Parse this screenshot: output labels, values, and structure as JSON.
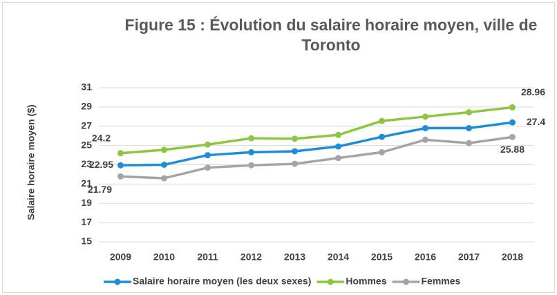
{
  "chart_data": {
    "type": "line",
    "title": "Figure 15 : Évolution du salaire horaire moyen, ville de Toronto",
    "y_label": "Salaire horaire moyen ($)",
    "categories": [
      "2009",
      "2010",
      "2011",
      "2012",
      "2013",
      "2014",
      "2015",
      "2016",
      "2017",
      "2018"
    ],
    "series": [
      {
        "name": "Salaire horaire moyen (les deux sexes)",
        "color": "#1f8dd6",
        "values": [
          22.95,
          23.0,
          24.0,
          24.3,
          24.4,
          24.9,
          25.9,
          26.8,
          26.8,
          27.4
        ]
      },
      {
        "name": "Hommes",
        "color": "#8dc63f",
        "values": [
          24.2,
          24.55,
          25.1,
          25.75,
          25.7,
          26.1,
          27.55,
          28.0,
          28.45,
          28.96
        ]
      },
      {
        "name": "Femmes",
        "color": "#a5a5a5",
        "values": [
          21.79,
          21.6,
          22.7,
          22.95,
          23.1,
          23.7,
          24.3,
          25.6,
          25.25,
          25.88
        ]
      }
    ],
    "ylim": [
      15,
      31
    ],
    "yticks": [
      15,
      17,
      19,
      21,
      23,
      25,
      27,
      29,
      31
    ],
    "grid": true,
    "legend": "bottom"
  }
}
